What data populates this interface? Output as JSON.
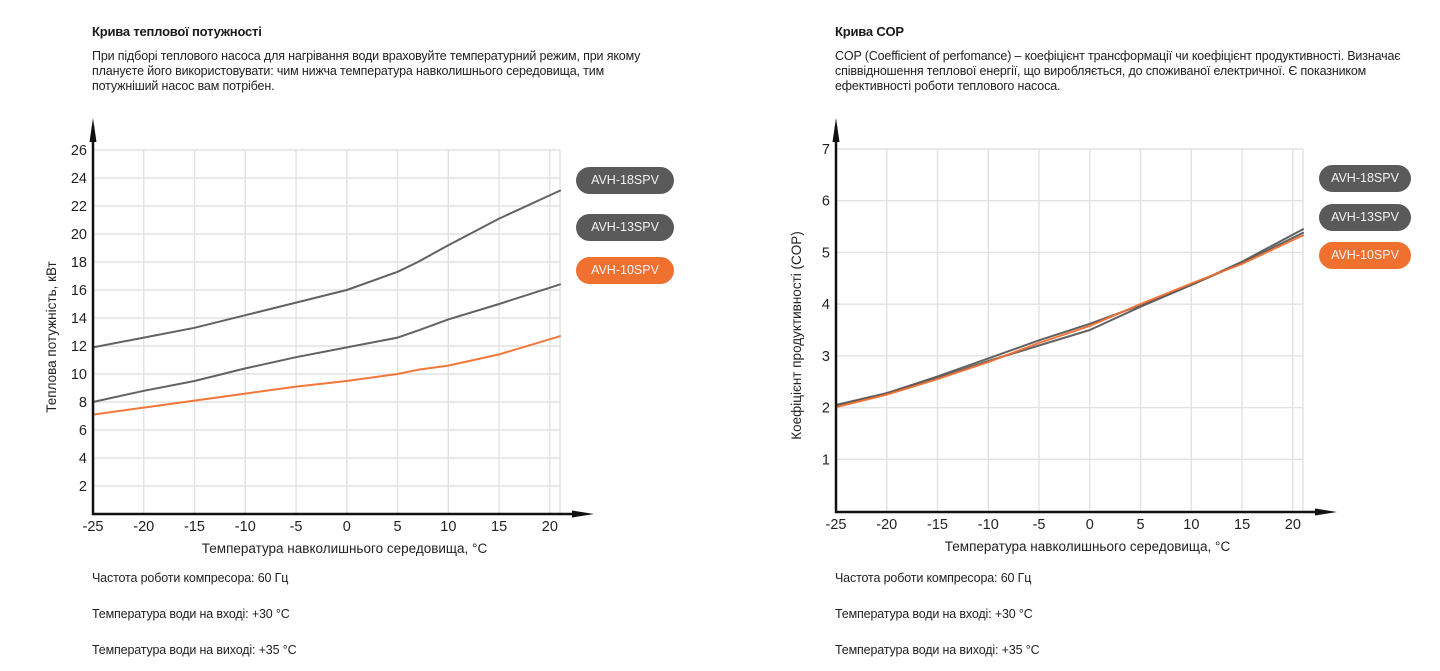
{
  "panels": [
    {
      "title": "Крива теплової потужності",
      "description": "При підборі теплового насоса для нагрівання води враховуйте температурний режим, при якому плануєте його використовувати: чим нижча температура навколишнього середовища, тим потужніший насос вам потрібен.",
      "notes": [
        "Частота роботи компресора: 60 Гц",
        "Температура води на вході: +30 °C",
        "Температура води на виході: +35 °C"
      ]
    },
    {
      "title": "Крива COP",
      "description": "COP (Coefficient of perfomance) – коефіцієнт трансформації чи коефіцієнт продуктивності. Визначає співвідношення теплової енергії, що виробляється, до споживаної електричної. Є показником ефективності роботи теплового насоса.",
      "notes": [
        "Частота роботи компресора: 60 Гц",
        "Температура води на вході: +30 °C",
        "Температура води на виході: +35 °C"
      ]
    }
  ],
  "colors": {
    "dark_series": "#5a5a5a",
    "orange_series": "#f07030",
    "grid": "#e2e2e2",
    "axis": "#111111"
  },
  "chart_data": [
    {
      "type": "line",
      "title": "Крива теплової потужності",
      "xlabel": "Температура навколишнього середовища, °C",
      "ylabel": "Теплова потужність, кВт",
      "xlim": [
        -25,
        21
      ],
      "ylim": [
        0,
        26
      ],
      "xticks": [
        -25,
        -20,
        -15,
        -10,
        -5,
        0,
        5,
        10,
        15,
        20
      ],
      "yticks": [
        2,
        4,
        6,
        8,
        10,
        12,
        14,
        16,
        18,
        20,
        22,
        24,
        26
      ],
      "grid": true,
      "legend_position": "right",
      "x": [
        -25,
        -20,
        -15,
        -10,
        -5,
        0,
        5,
        7,
        10,
        15,
        21
      ],
      "series": [
        {
          "name": "AVH-18SPV",
          "color": "#5a5a5a",
          "values": [
            11.9,
            12.6,
            13.3,
            14.2,
            15.1,
            16.0,
            17.3,
            18.0,
            19.2,
            21.1,
            23.1
          ]
        },
        {
          "name": "AVH-13SPV",
          "color": "#5a5a5a",
          "values": [
            8.0,
            8.8,
            9.5,
            10.4,
            11.2,
            11.9,
            12.6,
            13.1,
            13.9,
            15.0,
            16.4
          ]
        },
        {
          "name": "AVH-10SPV",
          "color": "#f07030",
          "values": [
            7.1,
            7.6,
            8.1,
            8.6,
            9.1,
            9.5,
            10.0,
            10.3,
            10.6,
            11.4,
            12.7
          ]
        }
      ]
    },
    {
      "type": "line",
      "title": "Крива COP",
      "xlabel": "Температура навколишнього середовища, °C",
      "ylabel": "Коефіцієнт продуктивності (COP)",
      "xlim": [
        -25,
        21
      ],
      "ylim": [
        0,
        7
      ],
      "xticks": [
        -25,
        -20,
        -15,
        -10,
        -5,
        0,
        5,
        10,
        15,
        20
      ],
      "yticks": [
        1,
        2,
        3,
        4,
        5,
        6,
        7
      ],
      "grid": true,
      "legend_position": "right",
      "x": [
        -25,
        -20,
        -15,
        -10,
        -5,
        0,
        5,
        10,
        15,
        21
      ],
      "series": [
        {
          "name": "AVH-18SPV",
          "color": "#5a5a5a",
          "values": [
            2.05,
            2.28,
            2.6,
            2.95,
            3.3,
            3.62,
            3.98,
            4.37,
            4.82,
            5.45
          ]
        },
        {
          "name": "AVH-13SPV",
          "color": "#5a5a5a",
          "values": [
            2.04,
            2.27,
            2.57,
            2.9,
            3.2,
            3.5,
            3.95,
            4.37,
            4.8,
            5.38
          ]
        },
        {
          "name": "AVH-10SPV",
          "color": "#f07030",
          "values": [
            2.01,
            2.25,
            2.55,
            2.88,
            3.25,
            3.58,
            4.0,
            4.4,
            4.78,
            5.33
          ]
        }
      ]
    }
  ]
}
